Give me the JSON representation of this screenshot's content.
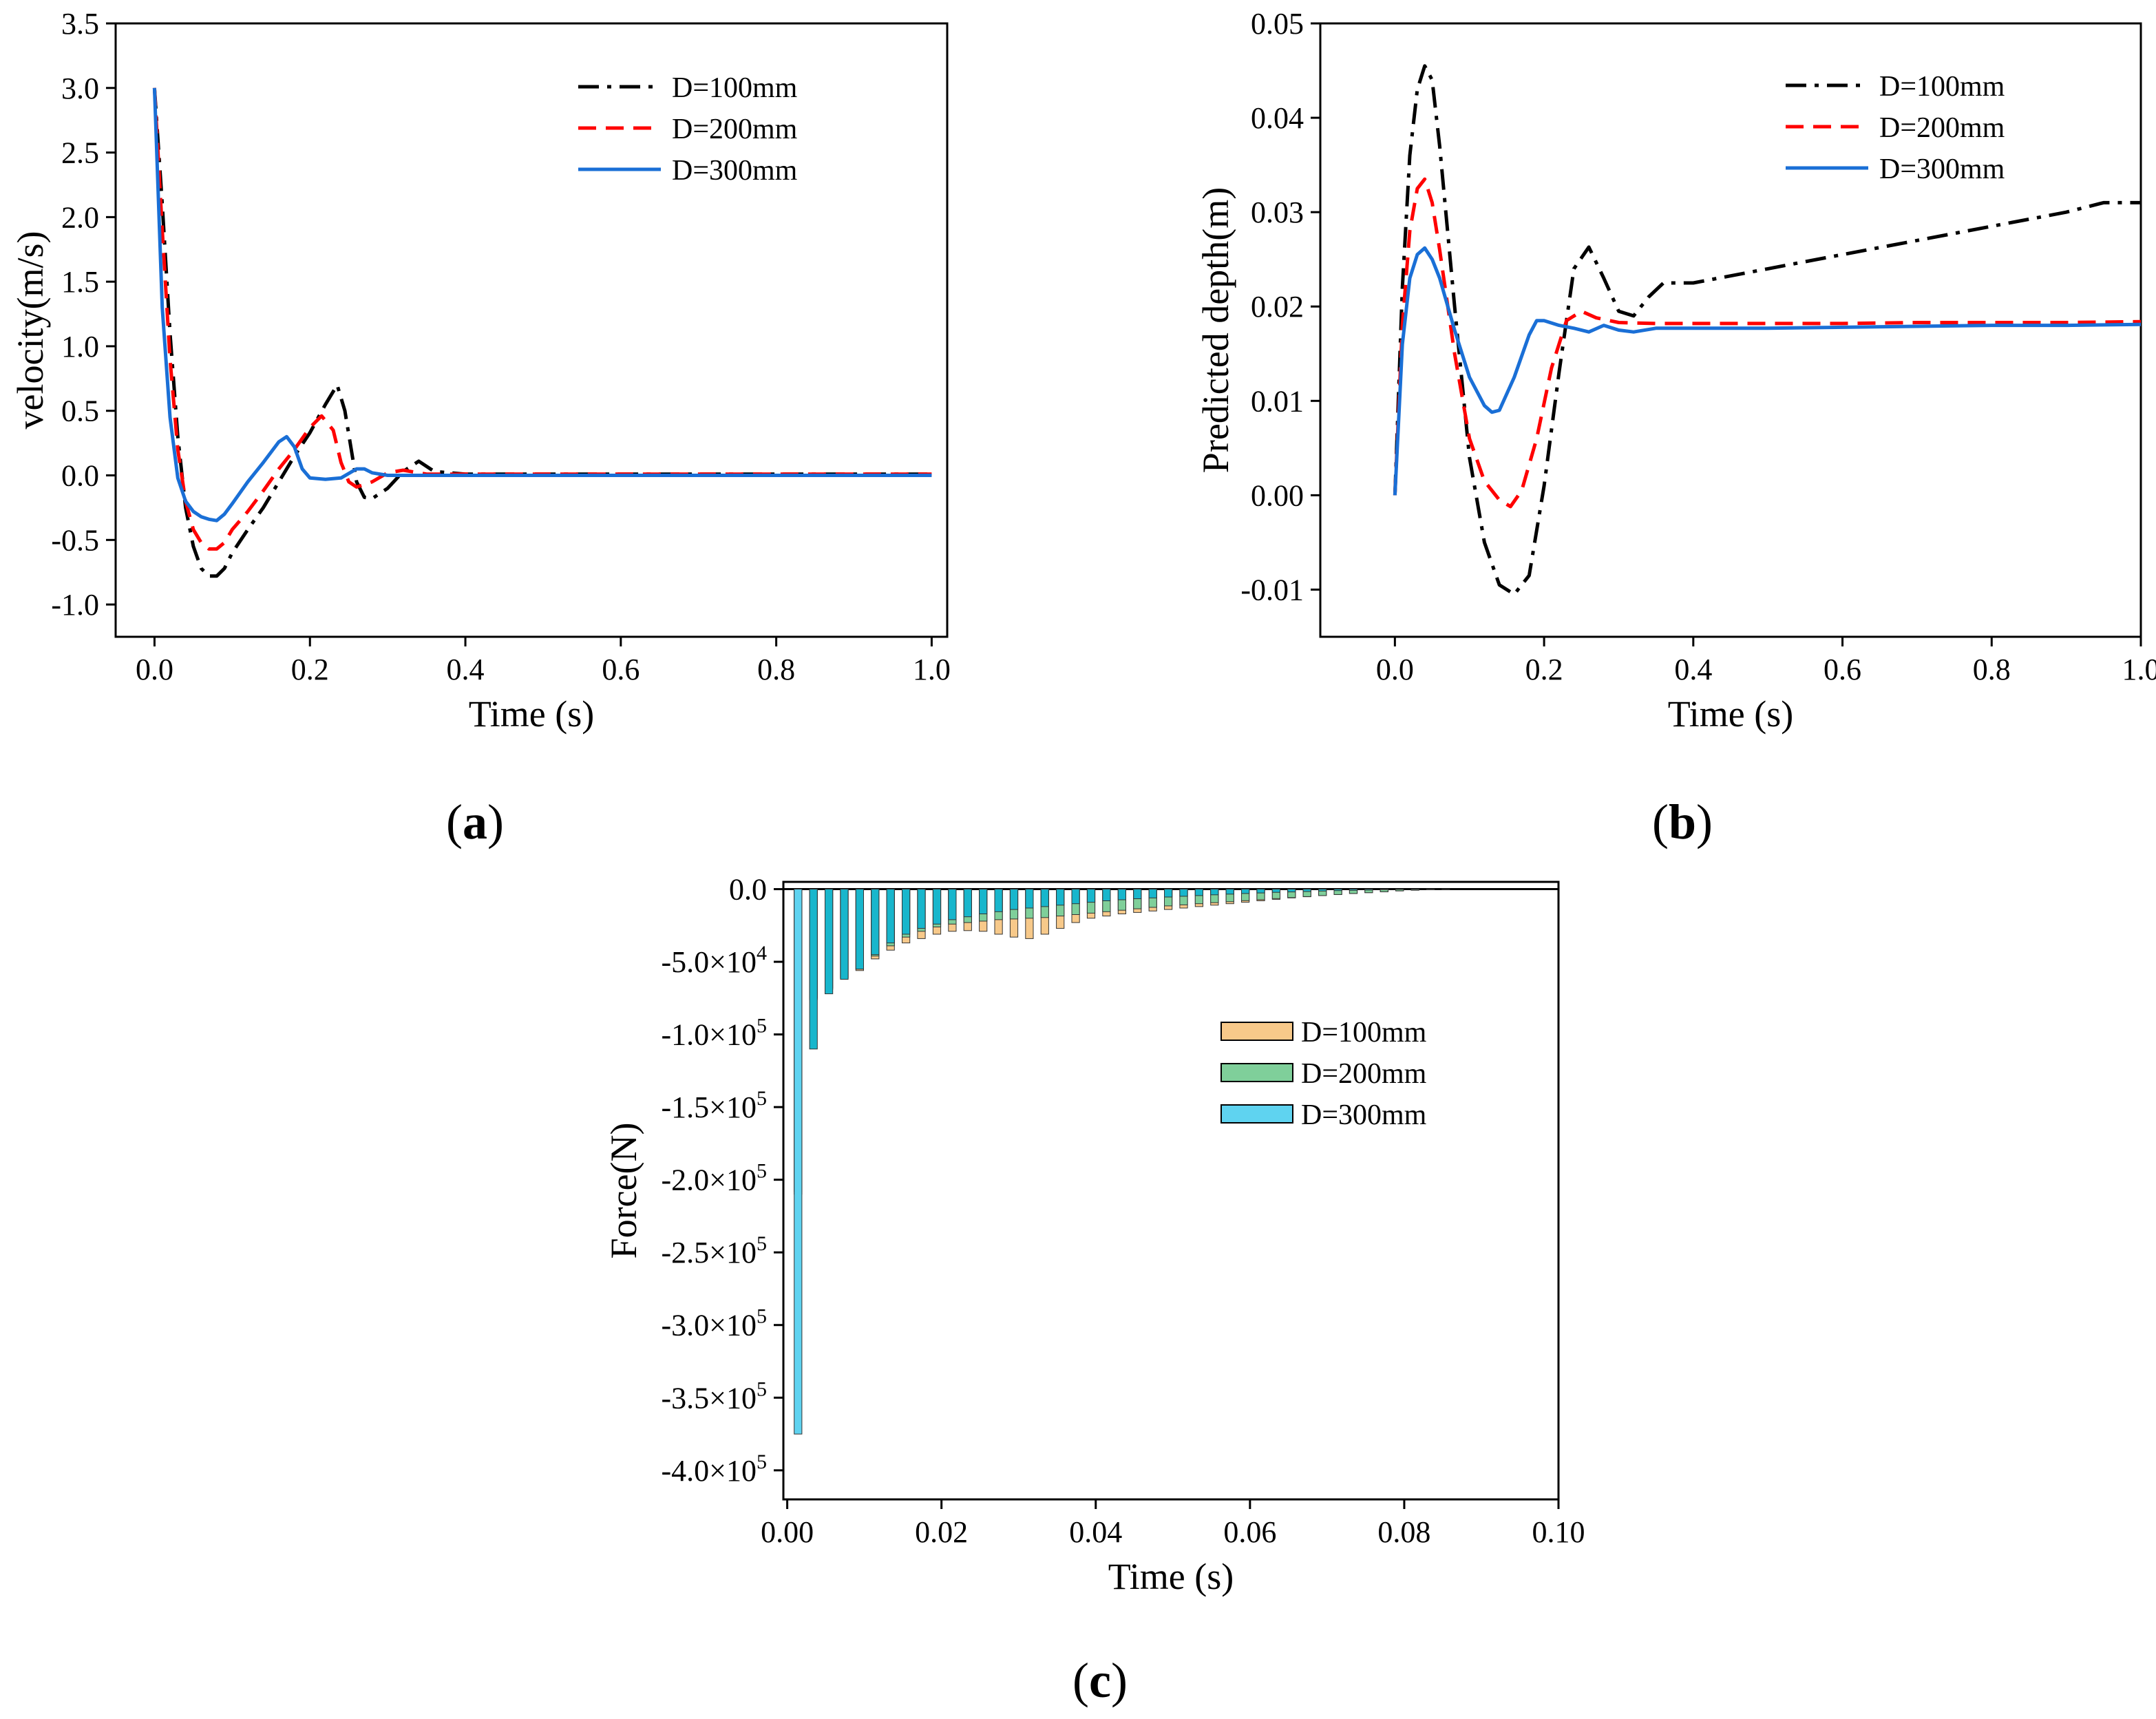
{
  "figure": {
    "panels": [
      {
        "id": "a",
        "label_open": "(",
        "label_letter": "a",
        "label_close": ")"
      },
      {
        "id": "b",
        "label_open": "(",
        "label_letter": "b",
        "label_close": ")"
      },
      {
        "id": "c",
        "label_open": "(",
        "label_letter": "c",
        "label_close": ")"
      }
    ]
  },
  "colors": {
    "D100_line": "#000000",
    "D200_line": "#ff0000",
    "D300_line": "#1a6fd6",
    "D100_bar": "#f7c98a",
    "D200_bar": "#7fcf9a",
    "D300_bar": "#5fd3f0",
    "D300_bar_dark": "#18b6cc"
  },
  "chart_data": [
    {
      "id": "a",
      "type": "line",
      "title": "",
      "xlabel": "Time (s)",
      "ylabel": "velocity(m/s)",
      "xlim": [
        -0.05,
        1.02
      ],
      "ylim": [
        -1.25,
        3.5
      ],
      "xticks": [
        0.0,
        0.2,
        0.4,
        0.6,
        0.8,
        1.0
      ],
      "xtick_labels": [
        "0.0",
        "0.2",
        "0.4",
        "0.6",
        "0.8",
        "1.0"
      ],
      "yticks": [
        -1.0,
        -0.5,
        0.0,
        0.5,
        1.0,
        1.5,
        2.0,
        2.5,
        3.0,
        3.5
      ],
      "ytick_labels": [
        "-1.0",
        "-0.5",
        "0.0",
        "0.5",
        "1.0",
        "1.5",
        "2.0",
        "2.5",
        "3.0",
        "3.5"
      ],
      "legend_position": "top-right",
      "series": [
        {
          "name": "D=100mm",
          "style": "dashdot",
          "x": [
            0,
            0.01,
            0.02,
            0.03,
            0.04,
            0.05,
            0.06,
            0.07,
            0.08,
            0.09,
            0.1,
            0.12,
            0.14,
            0.16,
            0.18,
            0.2,
            0.22,
            0.235,
            0.245,
            0.26,
            0.27,
            0.28,
            0.3,
            0.32,
            0.34,
            0.36,
            0.4,
            0.5,
            0.6,
            0.7,
            0.8,
            0.9,
            1.0
          ],
          "y": [
            3.0,
            2.1,
            1.1,
            0.3,
            -0.25,
            -0.55,
            -0.72,
            -0.78,
            -0.78,
            -0.72,
            -0.6,
            -0.42,
            -0.25,
            -0.05,
            0.15,
            0.33,
            0.55,
            0.7,
            0.5,
            -0.05,
            -0.17,
            -0.18,
            -0.1,
            0.03,
            0.11,
            0.03,
            0.01,
            0.01,
            0.01,
            0.01,
            0.01,
            0.01,
            0.01
          ]
        },
        {
          "name": "D=200mm",
          "style": "dashed",
          "x": [
            0,
            0.01,
            0.02,
            0.03,
            0.04,
            0.05,
            0.06,
            0.07,
            0.08,
            0.09,
            0.1,
            0.12,
            0.14,
            0.16,
            0.18,
            0.2,
            0.215,
            0.23,
            0.24,
            0.25,
            0.26,
            0.28,
            0.3,
            0.32,
            0.35,
            0.4,
            0.5,
            0.6,
            0.7,
            0.8,
            0.9,
            1.0
          ],
          "y": [
            3.0,
            1.9,
            0.9,
            0.2,
            -0.2,
            -0.42,
            -0.52,
            -0.57,
            -0.57,
            -0.52,
            -0.42,
            -0.28,
            -0.12,
            0.05,
            0.2,
            0.37,
            0.46,
            0.35,
            0.1,
            -0.05,
            -0.09,
            -0.05,
            0.02,
            0.04,
            0.01,
            0.01,
            0.01,
            0.01,
            0.01,
            0.01,
            0.01,
            0.01
          ]
        },
        {
          "name": "D=300mm",
          "style": "solid",
          "x": [
            0,
            0.01,
            0.02,
            0.03,
            0.04,
            0.05,
            0.06,
            0.07,
            0.08,
            0.09,
            0.1,
            0.12,
            0.14,
            0.16,
            0.17,
            0.18,
            0.19,
            0.2,
            0.22,
            0.24,
            0.26,
            0.27,
            0.28,
            0.3,
            0.35,
            0.4,
            0.5,
            0.6,
            0.7,
            0.8,
            0.9,
            1.0
          ],
          "y": [
            3.0,
            1.3,
            0.45,
            -0.02,
            -0.2,
            -0.28,
            -0.32,
            -0.34,
            -0.35,
            -0.3,
            -0.22,
            -0.05,
            0.1,
            0.26,
            0.3,
            0.22,
            0.05,
            -0.02,
            -0.03,
            -0.02,
            0.05,
            0.05,
            0.02,
            0.0,
            0.0,
            0.0,
            0.0,
            0.0,
            0.0,
            0.0,
            0.0,
            0.0
          ]
        }
      ]
    },
    {
      "id": "b",
      "type": "line",
      "title": "",
      "xlabel": "Time (s)",
      "ylabel": "Predicted depth(m)",
      "xlim": [
        -0.1,
        1.0
      ],
      "ylim": [
        -0.015,
        0.05
      ],
      "xticks": [
        0.0,
        0.2,
        0.4,
        0.6,
        0.8,
        1.0
      ],
      "xtick_labels": [
        "0.0",
        "0.2",
        "0.4",
        "0.6",
        "0.8",
        "1.0"
      ],
      "yticks": [
        -0.01,
        0.0,
        0.01,
        0.02,
        0.03,
        0.04,
        0.05
      ],
      "ytick_labels": [
        "-0.01",
        "0.00",
        "0.01",
        "0.02",
        "0.03",
        "0.04",
        "0.05"
      ],
      "legend_position": "top-right",
      "series": [
        {
          "name": "D=100mm",
          "style": "dashdot",
          "x": [
            0,
            0.01,
            0.02,
            0.03,
            0.04,
            0.05,
            0.06,
            0.08,
            0.1,
            0.12,
            0.14,
            0.16,
            0.18,
            0.2,
            0.22,
            0.24,
            0.26,
            0.28,
            0.3,
            0.32,
            0.34,
            0.36,
            0.4,
            0.5,
            0.6,
            0.7,
            0.8,
            0.9,
            0.95,
            1.0
          ],
          "y": [
            0.0,
            0.022,
            0.036,
            0.043,
            0.0455,
            0.044,
            0.037,
            0.02,
            0.004,
            -0.005,
            -0.0095,
            -0.0105,
            -0.0085,
            0.001,
            0.013,
            0.024,
            0.0263,
            0.023,
            0.0195,
            0.019,
            0.021,
            0.0225,
            0.0225,
            0.024,
            0.0255,
            0.027,
            0.0285,
            0.03,
            0.031,
            0.031
          ]
        },
        {
          "name": "D=200mm",
          "style": "dashed",
          "x": [
            0,
            0.01,
            0.02,
            0.03,
            0.04,
            0.05,
            0.06,
            0.08,
            0.1,
            0.12,
            0.14,
            0.155,
            0.17,
            0.19,
            0.21,
            0.23,
            0.25,
            0.27,
            0.3,
            0.35,
            0.4,
            0.5,
            0.6,
            0.7,
            0.8,
            0.9,
            1.0
          ],
          "y": [
            0.0,
            0.018,
            0.028,
            0.0325,
            0.0335,
            0.031,
            0.026,
            0.015,
            0.006,
            0.0015,
            -0.0005,
            -0.0012,
            0.0005,
            0.006,
            0.0135,
            0.0185,
            0.0195,
            0.0188,
            0.0183,
            0.0182,
            0.0182,
            0.0182,
            0.0182,
            0.0183,
            0.0183,
            0.0183,
            0.0184
          ]
        },
        {
          "name": "D=300mm",
          "style": "solid",
          "x": [
            0,
            0.01,
            0.02,
            0.03,
            0.04,
            0.05,
            0.06,
            0.08,
            0.1,
            0.12,
            0.13,
            0.14,
            0.16,
            0.18,
            0.19,
            0.2,
            0.22,
            0.24,
            0.26,
            0.28,
            0.3,
            0.32,
            0.35,
            0.4,
            0.5,
            0.6,
            0.7,
            0.8,
            0.9,
            1.0
          ],
          "y": [
            0.0,
            0.016,
            0.023,
            0.0255,
            0.0262,
            0.025,
            0.023,
            0.0175,
            0.0125,
            0.0095,
            0.0088,
            0.009,
            0.0125,
            0.017,
            0.0185,
            0.0185,
            0.018,
            0.0177,
            0.0173,
            0.018,
            0.0175,
            0.0173,
            0.0177,
            0.0177,
            0.0177,
            0.0178,
            0.0179,
            0.018,
            0.018,
            0.0181
          ]
        }
      ]
    },
    {
      "id": "c",
      "type": "bar",
      "title": "",
      "xlabel": "Time (s)",
      "ylabel": "Force(N)",
      "xlim": [
        -0.0005,
        0.1
      ],
      "ylim": [
        -420000,
        5000
      ],
      "xticks": [
        0.0,
        0.02,
        0.04,
        0.06,
        0.08,
        0.1
      ],
      "xtick_labels": [
        "0.00",
        "0.02",
        "0.04",
        "0.06",
        "0.08",
        "0.10"
      ],
      "yticks": [
        0,
        -50000,
        -100000,
        -150000,
        -200000,
        -250000,
        -300000,
        -350000,
        -400000
      ],
      "ytick_labels": [
        {
          "mantissa": "0.0",
          "exp": ""
        },
        {
          "mantissa": "-5.0×10",
          "exp": "4"
        },
        {
          "mantissa": "-1.0×10",
          "exp": "5"
        },
        {
          "mantissa": "-1.5×10",
          "exp": "5"
        },
        {
          "mantissa": "-2.0×10",
          "exp": "5"
        },
        {
          "mantissa": "-2.5×10",
          "exp": "5"
        },
        {
          "mantissa": "-3.0×10",
          "exp": "5"
        },
        {
          "mantissa": "-3.5×10",
          "exp": "5"
        },
        {
          "mantissa": "-4.0×10",
          "exp": "5"
        }
      ],
      "legend_position": "center-right",
      "bar_width": 0.001,
      "series": [
        {
          "name": "D=100mm",
          "x": [
            0.0014,
            0.0034,
            0.0054,
            0.0074,
            0.0094,
            0.0114,
            0.0134,
            0.0154,
            0.0174,
            0.0194,
            0.0214,
            0.0234,
            0.0254,
            0.0274,
            0.0294,
            0.0314,
            0.0334,
            0.0354,
            0.0374,
            0.0394,
            0.0414,
            0.0434,
            0.0454,
            0.0474,
            0.0494,
            0.0514,
            0.0534,
            0.0554,
            0.0574,
            0.0594,
            0.0614,
            0.0634,
            0.0654,
            0.0674,
            0.0694,
            0.0714,
            0.0734,
            0.0754,
            0.0774,
            0.0794,
            0.0814,
            0.0834,
            0.0854
          ],
          "y": [
            -208000,
            -75000,
            -68000,
            -61000,
            -56000,
            -48000,
            -42000,
            -37000,
            -34000,
            -31000,
            -29000,
            -28500,
            -29000,
            -31000,
            -33000,
            -34000,
            -31000,
            -27000,
            -23000,
            -20000,
            -18500,
            -17000,
            -16000,
            -15000,
            -14000,
            -13000,
            -12000,
            -11000,
            -10000,
            -9000,
            -8000,
            -7000,
            -6000,
            -5200,
            -4400,
            -3700,
            -3000,
            -2400,
            -1800,
            -1200,
            -700,
            -300,
            -100
          ]
        },
        {
          "name": "D=200mm",
          "x": [
            0.0014,
            0.0034,
            0.0054,
            0.0074,
            0.0094,
            0.0114,
            0.0134,
            0.0154,
            0.0174,
            0.0194,
            0.0214,
            0.0234,
            0.0254,
            0.0274,
            0.0294,
            0.0314,
            0.0334,
            0.0354,
            0.0374,
            0.0394,
            0.0414,
            0.0434,
            0.0454,
            0.0474,
            0.0494,
            0.0514,
            0.0534,
            0.0554,
            0.0574,
            0.0594,
            0.0614,
            0.0634,
            0.0654,
            0.0674,
            0.0694,
            0.0714,
            0.0734,
            0.0754,
            0.0774,
            0.0794,
            0.0814,
            0.0834,
            0.0854
          ],
          "y": [
            -210000,
            -76000,
            -69000,
            -61000,
            -55000,
            -46000,
            -39000,
            -33000,
            -29000,
            -26000,
            -24000,
            -23000,
            -22000,
            -21000,
            -20500,
            -20000,
            -19500,
            -18500,
            -17500,
            -16500,
            -15500,
            -14500,
            -13500,
            -12500,
            -11500,
            -10800,
            -10000,
            -9300,
            -8600,
            -7900,
            -7200,
            -6500,
            -5800,
            -5100,
            -4400,
            -3700,
            -3000,
            -2400,
            -1800,
            -1200,
            -700,
            -300,
            -100
          ]
        },
        {
          "name": "D=300mm",
          "x": [
            0.0014,
            0.0034,
            0.0054,
            0.0074,
            0.0094,
            0.0114,
            0.0134,
            0.0154,
            0.0174,
            0.0194,
            0.0214,
            0.0234,
            0.0254,
            0.0274,
            0.0294,
            0.0314,
            0.0334,
            0.0354,
            0.0374,
            0.0394,
            0.0414,
            0.0434,
            0.0454,
            0.0474,
            0.0494,
            0.0514,
            0.0534,
            0.0554,
            0.0574,
            0.0594,
            0.0614,
            0.0634,
            0.0654,
            0.0674,
            0.0694,
            0.0714,
            0.0734,
            0.0754,
            0.0774,
            0.0794,
            0.0814,
            0.0834,
            0.0854
          ],
          "y": [
            -375000,
            -110000,
            -72000,
            -62000,
            -55000,
            -45000,
            -37000,
            -31000,
            -27000,
            -24000,
            -21000,
            -19000,
            -17000,
            -15500,
            -14000,
            -13000,
            -12000,
            -11000,
            -10000,
            -9000,
            -8000,
            -7300,
            -6600,
            -6000,
            -5400,
            -4900,
            -4400,
            -3900,
            -3400,
            -3000,
            -2600,
            -2200,
            -1900,
            -1600,
            -1300,
            -1000,
            -800,
            -600,
            -400,
            -250,
            -150,
            -60,
            -20
          ]
        }
      ]
    }
  ]
}
